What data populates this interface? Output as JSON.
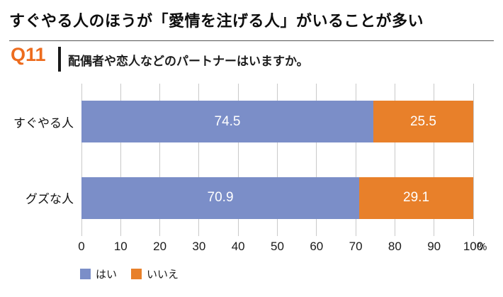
{
  "header": {
    "title": "すぐやる人のほうが「愛情を注げる人」がいることが多い"
  },
  "question": {
    "label": "Q11",
    "text": "配偶者や恋人などのパートナーはいますか。"
  },
  "colors": {
    "accent_orange": "#ED6C1E",
    "grid": "#C9C9C9",
    "bar_blue": "#7B8EC8",
    "bar_orange": "#E8802A"
  },
  "chart_data": {
    "type": "bar",
    "orientation": "horizontal",
    "stacked": true,
    "categories": [
      "すぐやる人",
      "グズな人"
    ],
    "series": [
      {
        "name": "はい",
        "color": "#7B8EC8",
        "values": [
          74.5,
          70.9
        ]
      },
      {
        "name": "いいえ",
        "color": "#E8802A",
        "values": [
          25.5,
          29.1
        ]
      }
    ],
    "xlim": [
      0,
      100
    ],
    "xticks": [
      0,
      10,
      20,
      30,
      40,
      50,
      60,
      70,
      80,
      90,
      100
    ],
    "x_unit": "%",
    "grid": true,
    "legend_position": "bottom-left"
  }
}
